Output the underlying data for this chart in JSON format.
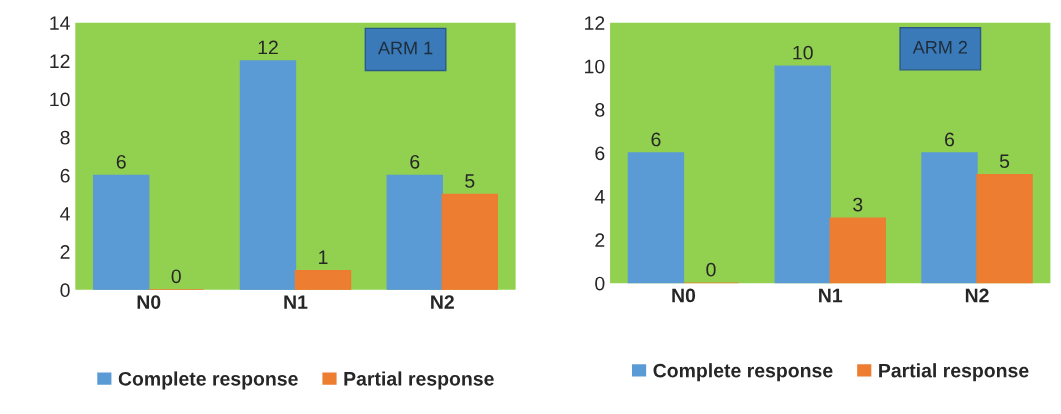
{
  "chart_data": [
    {
      "type": "bar",
      "title": "ARM 1",
      "categories": [
        "N0",
        "N1",
        "N2"
      ],
      "series": [
        {
          "name": "Complete response",
          "color": "#5b9bd5",
          "values": [
            6,
            12,
            6
          ]
        },
        {
          "name": "Partial response",
          "color": "#ed7d31",
          "values": [
            0,
            1,
            5
          ]
        }
      ],
      "ylim": [
        0,
        14
      ],
      "yticks": [
        0,
        2,
        4,
        6,
        8,
        10,
        12,
        14
      ],
      "data_labels": true,
      "legend": "bottom",
      "grid": false
    },
    {
      "type": "bar",
      "title": "ARM 2",
      "categories": [
        "N0",
        "N1",
        "N2"
      ],
      "series": [
        {
          "name": "Complete response",
          "color": "#5b9bd5",
          "values": [
            6,
            10,
            6
          ]
        },
        {
          "name": "Partial response",
          "color": "#ed7d31",
          "values": [
            0,
            3,
            5
          ]
        }
      ],
      "ylim": [
        0,
        12
      ],
      "yticks": [
        0,
        2,
        4,
        6,
        8,
        10,
        12
      ],
      "data_labels": true,
      "legend": "bottom",
      "grid": false
    }
  ]
}
